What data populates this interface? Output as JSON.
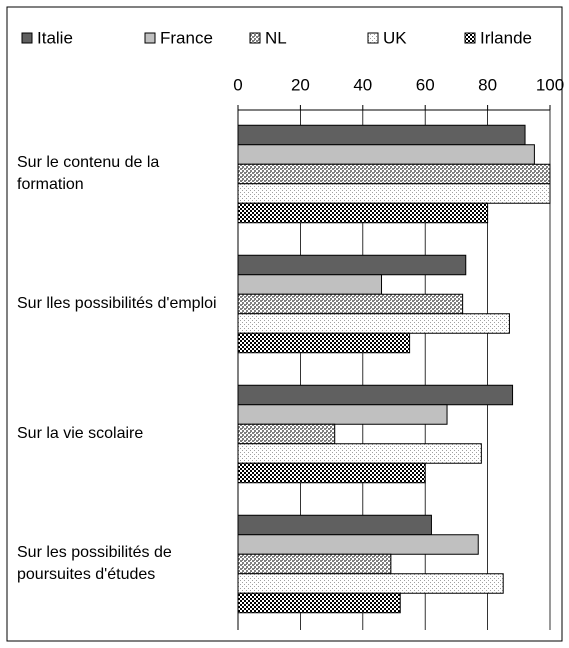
{
  "chart_data": {
    "type": "hbar",
    "categories": [
      "Sur le contenu de la formation",
      "Sur lles possibilités d'emploi",
      "Sur la vie scolaire",
      "Sur les possibilités de poursuites d'études"
    ],
    "series": [
      {
        "name": "Italie",
        "color": "#606060",
        "values": [
          92,
          73,
          88,
          62
        ]
      },
      {
        "name": "France",
        "color": "#c0c0c0",
        "values": [
          95,
          46,
          67,
          77
        ]
      },
      {
        "name": "NL",
        "color": "#808080",
        "values": [
          100,
          72,
          31,
          49
        ]
      },
      {
        "name": "UK",
        "color": "#a0a0a0",
        "values": [
          100,
          87,
          78,
          85
        ]
      },
      {
        "name": "Irlande",
        "color": "#000000",
        "values": [
          80,
          55,
          60,
          52
        ]
      }
    ],
    "xlim": [
      0,
      100
    ],
    "xticks": [
      0,
      20,
      40,
      60,
      80,
      100
    ],
    "grid": true,
    "legend": "top"
  }
}
